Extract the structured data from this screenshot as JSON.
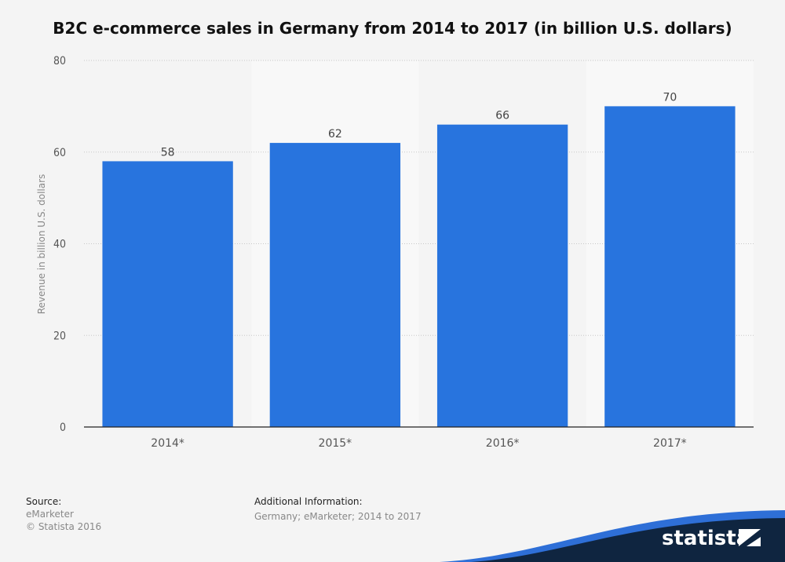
{
  "chart_data": {
    "type": "bar",
    "title": "B2C e-commerce sales in Germany from 2014 to 2017 (in billion U.S. dollars)",
    "xlabel": "",
    "ylabel": "Revenue in billion U.S. dollars",
    "categories": [
      "2014*",
      "2015*",
      "2016*",
      "2017*"
    ],
    "values": [
      58,
      62,
      66,
      70
    ],
    "ylim": [
      0,
      80
    ],
    "yticks": [
      0,
      20,
      40,
      60,
      80
    ],
    "grid": true,
    "bar_color": "#2874de"
  },
  "footer": {
    "source_heading": "Source:",
    "source_lines": [
      "eMarketer",
      "© Statista 2016"
    ],
    "additional_heading": "Additional Information:",
    "additional_text": "Germany; eMarketer; 2014 to 2017",
    "logo_text": "statista"
  }
}
